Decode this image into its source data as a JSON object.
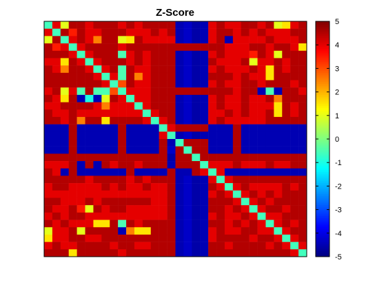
{
  "chart_data": {
    "type": "heatmap",
    "title": "Z-Score",
    "xlabel": "",
    "ylabel": "",
    "rows": 32,
    "cols": 32,
    "x_ticks": [],
    "y_ticks": [],
    "colormap": "jet",
    "colorbar": {
      "min": -5,
      "max": 5,
      "ticks": [
        "5",
        "4",
        "3",
        "2",
        "1",
        "0",
        "-1",
        "-2",
        "-3",
        "-4",
        "-5"
      ]
    },
    "low_blocks": {
      "rows": [
        14,
        15,
        16,
        17
      ],
      "cols": [
        16,
        17,
        18,
        19
      ],
      "value": -4.5
    },
    "matrix": [
      [
        -0.6,
        4.0,
        1.0,
        4.5,
        4.5,
        4.0,
        4.5,
        4.5,
        4.5,
        4.0,
        4.5,
        4.0,
        4.5,
        4.5,
        4.5,
        4.5,
        -4.5,
        -4.3,
        -4.6,
        -4.5,
        4.0,
        4.5,
        4.0,
        4.0,
        4.5,
        4.5,
        4.0,
        4.5,
        1.0,
        1.5,
        4.0,
        4.5
      ],
      [
        4.0,
        -0.6,
        4.5,
        3.5,
        4.5,
        4.0,
        4.0,
        4.5,
        4.5,
        4.5,
        4.0,
        4.0,
        4.0,
        4.5,
        4.0,
        4.5,
        -4.5,
        -4.3,
        -4.6,
        -4.5,
        4.0,
        4.5,
        4.5,
        4.0,
        4.5,
        4.0,
        4.5,
        4.0,
        4.0,
        4.0,
        4.5,
        4.5
      ],
      [
        1.0,
        4.5,
        -0.6,
        4.0,
        4.5,
        4.0,
        2.5,
        4.5,
        4.5,
        1.0,
        1.5,
        4.5,
        4.0,
        4.0,
        4.0,
        4.0,
        -4.5,
        -4.3,
        -4.6,
        -4.5,
        4.0,
        4.5,
        -4.5,
        4.0,
        4.0,
        4.0,
        4.0,
        4.5,
        4.0,
        4.0,
        4.0,
        4.5
      ],
      [
        4.5,
        3.5,
        4.0,
        -0.6,
        4.0,
        4.5,
        4.5,
        4.5,
        4.5,
        4.0,
        4.5,
        4.5,
        4.5,
        4.5,
        4.5,
        4.5,
        4.5,
        4.5,
        4.5,
        4.5,
        4.5,
        4.5,
        4.0,
        4.0,
        4.0,
        4.5,
        4.5,
        4.0,
        4.5,
        4.5,
        4.0,
        1.5
      ],
      [
        4.5,
        4.5,
        4.5,
        4.0,
        -0.6,
        4.0,
        4.5,
        4.5,
        4.5,
        -0.5,
        4.0,
        4.5,
        4.0,
        4.5,
        4.5,
        4.5,
        -4.5,
        -4.3,
        -4.6,
        -4.5,
        4.0,
        4.5,
        4.0,
        4.0,
        4.0,
        3.5,
        4.5,
        4.0,
        1.0,
        4.5,
        4.5,
        4.5
      ],
      [
        4.0,
        4.0,
        1.5,
        4.5,
        4.0,
        -0.6,
        4.0,
        4.5,
        4.5,
        4.5,
        4.0,
        4.5,
        4.0,
        4.5,
        4.5,
        4.5,
        -4.5,
        -4.3,
        -4.6,
        -4.5,
        4.5,
        4.0,
        4.0,
        4.0,
        4.5,
        1.0,
        4.0,
        4.0,
        4.5,
        4.0,
        4.5,
        4.5
      ],
      [
        4.5,
        4.0,
        2.5,
        4.5,
        4.5,
        4.0,
        -0.6,
        4.0,
        4.5,
        -0.5,
        4.5,
        4.0,
        4.0,
        4.5,
        4.5,
        4.5,
        -4.5,
        -4.3,
        -4.6,
        -4.5,
        4.0,
        4.5,
        4.0,
        4.0,
        4.0,
        4.5,
        4.0,
        1.5,
        4.5,
        4.0,
        4.5,
        4.5
      ],
      [
        4.5,
        4.5,
        4.5,
        4.5,
        4.5,
        4.5,
        4.0,
        -0.6,
        4.0,
        -0.5,
        4.5,
        2.5,
        4.0,
        4.5,
        4.5,
        4.5,
        -4.5,
        -4.3,
        -4.6,
        -4.5,
        4.5,
        4.5,
        4.5,
        4.0,
        4.5,
        4.0,
        4.0,
        1.5,
        4.5,
        4.5,
        4.5,
        4.5
      ],
      [
        4.5,
        4.5,
        4.5,
        4.5,
        4.5,
        4.5,
        4.5,
        4.0,
        -0.6,
        3.0,
        4.5,
        4.0,
        4.0,
        4.5,
        4.5,
        4.5,
        -4.5,
        -4.3,
        -4.6,
        -4.5,
        4.0,
        4.5,
        4.0,
        4.0,
        4.5,
        4.5,
        4.0,
        4.5,
        4.5,
        4.5,
        4.0,
        4.5
      ],
      [
        4.0,
        4.5,
        1.0,
        4.0,
        -0.5,
        4.5,
        -0.5,
        -0.5,
        3.0,
        -0.6,
        4.0,
        4.0,
        4.0,
        4.5,
        4.5,
        4.5,
        4.5,
        4.5,
        4.5,
        4.5,
        4.5,
        4.5,
        4.5,
        4.0,
        4.5,
        4.5,
        -4.5,
        -0.5,
        -4.5,
        4.5,
        4.5,
        4.0
      ],
      [
        4.5,
        4.0,
        1.5,
        4.5,
        -4.5,
        -1.0,
        -4.5,
        1.0,
        4.5,
        4.0,
        -0.6,
        4.0,
        4.0,
        4.5,
        4.5,
        4.5,
        -4.5,
        -4.3,
        -4.6,
        -4.5,
        4.0,
        4.5,
        4.0,
        4.0,
        4.5,
        4.0,
        4.0,
        4.5,
        2.5,
        4.5,
        4.5,
        4.5
      ],
      [
        4.0,
        4.0,
        4.5,
        4.5,
        4.5,
        4.5,
        4.0,
        2.5,
        4.0,
        4.0,
        4.0,
        -0.6,
        4.0,
        4.5,
        4.5,
        4.5,
        -4.5,
        -4.3,
        -4.6,
        -4.5,
        4.0,
        4.5,
        4.0,
        4.0,
        4.5,
        4.0,
        4.0,
        4.0,
        1.5,
        4.5,
        4.0,
        4.5
      ],
      [
        4.5,
        4.0,
        4.0,
        4.5,
        4.0,
        4.0,
        4.0,
        4.0,
        4.0,
        4.0,
        4.0,
        4.0,
        -0.6,
        4.0,
        4.5,
        4.5,
        -4.5,
        -4.3,
        -4.6,
        -4.5,
        4.0,
        4.0,
        4.5,
        4.0,
        4.5,
        4.0,
        4.0,
        4.5,
        1.5,
        4.5,
        4.0,
        4.5
      ],
      [
        4.5,
        4.5,
        4.0,
        4.5,
        2.5,
        4.5,
        4.5,
        1.5,
        4.5,
        4.5,
        4.5,
        4.5,
        4.0,
        -0.6,
        4.0,
        4.5,
        -4.5,
        -4.3,
        -4.6,
        -4.5,
        4.0,
        4.5,
        4.0,
        4.0,
        4.0,
        4.0,
        4.0,
        4.5,
        4.5,
        4.5,
        4.5,
        4.5
      ],
      [
        -4.5,
        -4.5,
        -4.5,
        4.5,
        -4.5,
        -4.5,
        -4.5,
        -4.5,
        -4.5,
        4.5,
        -4.5,
        -4.5,
        -4.5,
        -4.5,
        -0.6,
        4.0,
        4.5,
        4.5,
        4.5,
        4.5,
        -4.5,
        -4.5,
        -4.5,
        4.5,
        -4.5,
        -4.5,
        -4.5,
        -4.5,
        -4.5,
        -4.5,
        -4.5,
        -4.5
      ],
      [
        -4.5,
        -4.5,
        -4.5,
        4.5,
        -4.5,
        -4.5,
        -4.5,
        -4.5,
        -4.5,
        4.5,
        -4.5,
        -4.5,
        -4.5,
        -4.5,
        4.0,
        -0.6,
        -4.5,
        -4.3,
        -4.6,
        -4.5,
        -4.5,
        -4.5,
        -4.5,
        4.5,
        -4.5,
        -4.5,
        -4.5,
        -4.5,
        -4.5,
        -4.5,
        -4.5,
        -4.5
      ],
      [
        -4.5,
        -4.5,
        -4.5,
        4.5,
        -4.5,
        -4.5,
        -4.5,
        -4.5,
        -4.5,
        4.5,
        -4.5,
        -4.5,
        -4.5,
        -4.5,
        4.5,
        -4.5,
        -0.6,
        4.5,
        4.5,
        4.5,
        -4.5,
        -4.5,
        -4.5,
        4.5,
        -4.5,
        -4.5,
        -4.5,
        -4.5,
        -4.5,
        -4.5,
        -4.5,
        -4.5
      ],
      [
        -4.5,
        -4.5,
        -4.5,
        4.5,
        -4.5,
        -4.5,
        -4.5,
        -4.5,
        -4.5,
        4.5,
        -4.5,
        -4.5,
        -4.5,
        -4.5,
        4.5,
        -4.3,
        4.5,
        -0.6,
        4.5,
        4.5,
        -4.5,
        -4.5,
        -4.5,
        4.5,
        -4.5,
        -4.5,
        -4.5,
        -4.5,
        -4.5,
        -4.5,
        -4.5,
        -4.5
      ],
      [
        4.5,
        4.5,
        4.5,
        4.5,
        4.5,
        4.5,
        4.5,
        4.5,
        4.5,
        4.5,
        4.5,
        4.5,
        4.5,
        4.5,
        4.5,
        -4.6,
        4.5,
        4.5,
        -0.6,
        4.5,
        4.5,
        4.5,
        4.5,
        4.5,
        4.5,
        4.5,
        4.5,
        4.5,
        4.5,
        4.5,
        4.5,
        4.5
      ],
      [
        4.0,
        4.0,
        4.0,
        4.5,
        -4.5,
        4.5,
        -4.5,
        4.5,
        4.0,
        4.5,
        4.5,
        4.0,
        4.5,
        4.5,
        4.5,
        -4.5,
        4.5,
        4.5,
        4.5,
        -0.6,
        4.0,
        4.0,
        4.0,
        4.5,
        4.0,
        4.0,
        4.0,
        4.5,
        4.0,
        4.0,
        4.5,
        4.5
      ],
      [
        4.5,
        4.0,
        -4.5,
        4.5,
        -4.5,
        -4.5,
        -4.5,
        -4.5,
        -4.5,
        -4.5,
        4.5,
        -4.5,
        -4.5,
        -4.5,
        -4.5,
        4.5,
        -4.5,
        -4.5,
        4.5,
        4.0,
        -0.6,
        4.0,
        -4.5,
        -4.5,
        -4.5,
        -4.5,
        -4.5,
        -4.5,
        -4.5,
        -4.5,
        -4.5,
        -4.5
      ],
      [
        4.5,
        4.5,
        4.5,
        4.5,
        4.5,
        4.0,
        4.5,
        4.5,
        4.5,
        4.5,
        4.0,
        4.5,
        4.0,
        4.5,
        4.5,
        4.5,
        -4.5,
        -4.3,
        -4.6,
        -4.5,
        4.0,
        -0.6,
        4.0,
        4.5,
        4.5,
        4.5,
        4.5,
        4.5,
        4.5,
        4.5,
        4.5,
        4.5
      ],
      [
        4.0,
        4.5,
        4.5,
        4.0,
        4.0,
        4.0,
        4.0,
        4.5,
        4.0,
        4.5,
        4.0,
        4.0,
        4.5,
        4.0,
        4.0,
        4.5,
        -4.5,
        -4.3,
        -4.6,
        -4.5,
        4.5,
        4.0,
        -0.6,
        4.0,
        4.5,
        4.0,
        4.0,
        4.0,
        4.0,
        4.5,
        4.0,
        4.5
      ],
      [
        4.0,
        4.0,
        4.0,
        4.0,
        4.0,
        4.0,
        4.0,
        4.0,
        4.0,
        4.0,
        4.0,
        4.0,
        4.0,
        4.0,
        4.0,
        4.5,
        -4.5,
        -4.3,
        -4.6,
        -4.5,
        4.0,
        4.5,
        4.0,
        -0.6,
        4.0,
        4.5,
        4.0,
        4.5,
        4.0,
        4.5,
        4.5,
        4.5
      ],
      [
        4.5,
        4.5,
        4.0,
        4.0,
        4.0,
        4.5,
        4.0,
        4.5,
        4.5,
        4.5,
        4.5,
        4.5,
        4.5,
        4.0,
        4.0,
        4.5,
        -4.5,
        -4.3,
        -4.6,
        -4.5,
        4.5,
        4.5,
        4.5,
        4.0,
        -0.6,
        4.0,
        4.5,
        4.0,
        4.5,
        4.5,
        4.5,
        4.5
      ],
      [
        4.5,
        4.0,
        4.0,
        4.5,
        3.5,
        1.0,
        4.5,
        4.0,
        4.5,
        4.5,
        4.0,
        4.0,
        4.0,
        4.0,
        4.0,
        4.5,
        -4.5,
        -4.3,
        -4.6,
        -4.5,
        4.5,
        4.5,
        4.0,
        4.5,
        4.0,
        -0.6,
        4.0,
        4.5,
        4.5,
        4.0,
        4.5,
        4.5
      ],
      [
        4.0,
        4.5,
        4.0,
        4.5,
        4.5,
        4.0,
        4.0,
        4.0,
        4.0,
        4.0,
        4.0,
        4.0,
        4.0,
        4.0,
        4.0,
        4.5,
        -4.5,
        -4.3,
        -4.6,
        -4.5,
        4.0,
        4.5,
        4.0,
        4.0,
        4.5,
        4.0,
        -0.6,
        4.0,
        4.0,
        4.5,
        4.5,
        4.5
      ],
      [
        4.5,
        4.0,
        4.5,
        4.0,
        4.0,
        4.0,
        1.5,
        1.5,
        4.5,
        -0.5,
        4.5,
        4.0,
        4.5,
        4.5,
        4.5,
        4.5,
        -4.5,
        -4.3,
        -4.6,
        -4.5,
        4.5,
        4.5,
        4.0,
        4.5,
        4.0,
        4.5,
        4.0,
        -0.6,
        4.0,
        4.5,
        4.0,
        4.5
      ],
      [
        1.0,
        4.0,
        4.0,
        4.5,
        1.0,
        4.5,
        4.5,
        4.5,
        4.5,
        -4.5,
        2.5,
        1.5,
        1.5,
        4.5,
        4.5,
        4.5,
        -4.5,
        -4.3,
        -4.6,
        -4.5,
        4.0,
        4.5,
        4.0,
        4.0,
        4.5,
        4.5,
        4.0,
        4.0,
        -0.6,
        4.0,
        4.5,
        4.5
      ],
      [
        1.5,
        4.0,
        4.0,
        4.5,
        4.5,
        4.0,
        4.0,
        4.5,
        4.5,
        4.5,
        4.5,
        4.5,
        4.5,
        4.5,
        4.5,
        4.5,
        -4.5,
        -4.3,
        -4.6,
        -4.5,
        4.0,
        4.5,
        4.5,
        4.5,
        4.5,
        4.0,
        4.5,
        4.5,
        4.0,
        -0.6,
        4.0,
        4.5
      ],
      [
        4.0,
        4.5,
        4.0,
        4.0,
        4.5,
        4.5,
        4.5,
        4.5,
        4.0,
        4.5,
        4.5,
        4.0,
        4.0,
        4.5,
        4.5,
        4.5,
        -4.5,
        -4.3,
        -4.6,
        -4.5,
        4.5,
        4.5,
        4.0,
        4.5,
        4.5,
        4.5,
        4.5,
        4.0,
        4.5,
        4.0,
        -0.6,
        4.0
      ],
      [
        4.5,
        4.5,
        4.5,
        1.5,
        4.5,
        4.5,
        4.5,
        4.5,
        4.5,
        4.0,
        4.5,
        4.5,
        4.5,
        4.5,
        4.5,
        4.5,
        -4.5,
        -4.3,
        -4.6,
        -4.5,
        4.5,
        4.5,
        4.5,
        4.5,
        4.5,
        4.5,
        4.5,
        4.5,
        4.5,
        4.5,
        4.0,
        -0.6
      ]
    ]
  }
}
